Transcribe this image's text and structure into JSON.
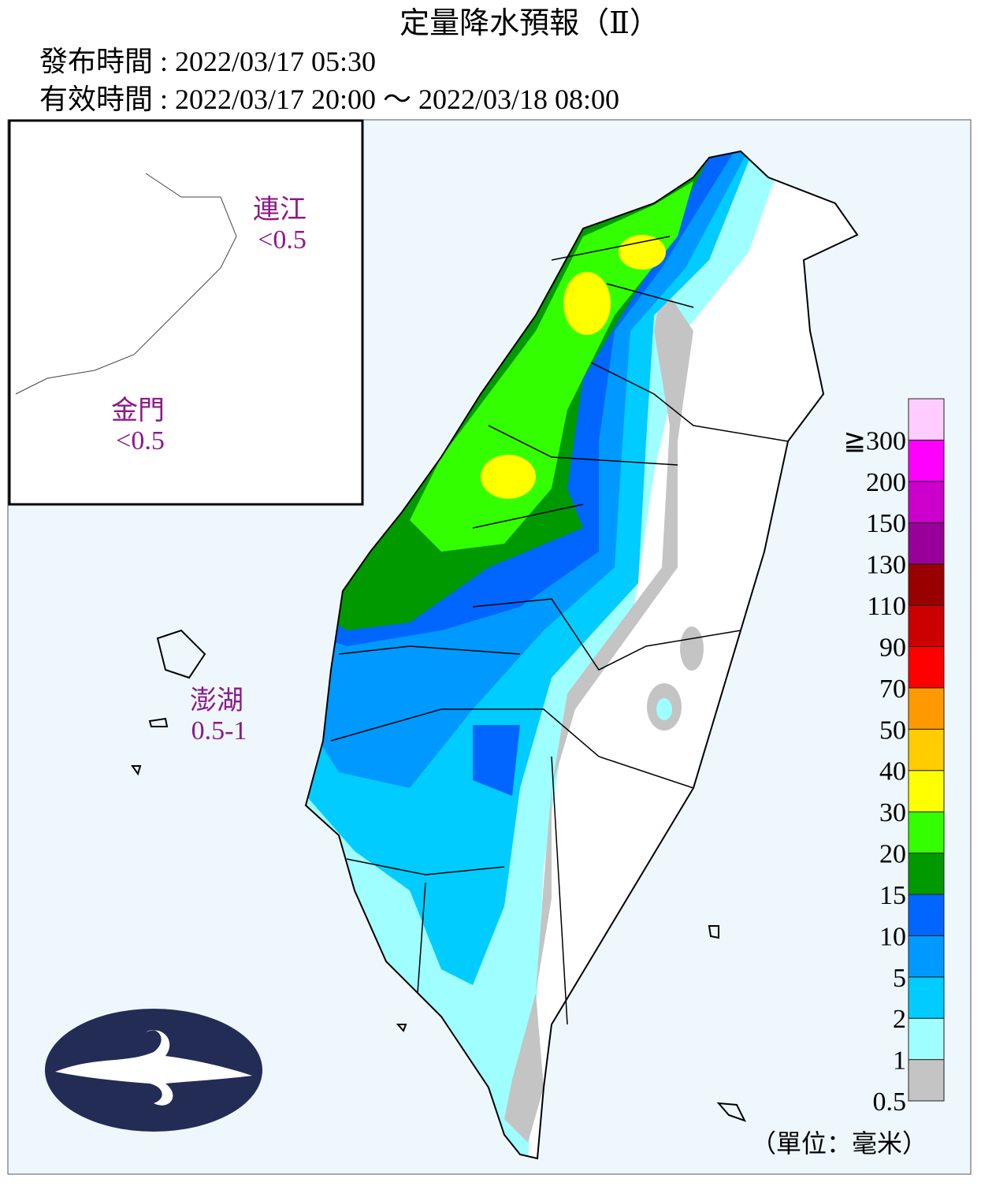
{
  "header": {
    "title": "定量降水預報（Ⅱ）",
    "issued": "發布時間 : 2022/03/17 05:30",
    "valid": "有效時間 : 2022/03/17 20:00 ～ 2022/03/18 08:00"
  },
  "map": {
    "labels": [
      {
        "name": "連江",
        "value": "<0.5"
      },
      {
        "name": "金門",
        "value": "<0.5"
      },
      {
        "name": "澎湖",
        "value": "0.5-1"
      }
    ]
  },
  "legend": {
    "unit": "（單位：毫米）",
    "levels": [
      {
        "label": "0.5",
        "color": "#c4c4c4"
      },
      {
        "label": "1",
        "color": "#9ffeff"
      },
      {
        "label": "2",
        "color": "#00ccff"
      },
      {
        "label": "5",
        "color": "#0099ff"
      },
      {
        "label": "10",
        "color": "#0066ff"
      },
      {
        "label": "15",
        "color": "#009900"
      },
      {
        "label": "20",
        "color": "#33ff00"
      },
      {
        "label": "30",
        "color": "#ffff00"
      },
      {
        "label": "40",
        "color": "#ffcc00"
      },
      {
        "label": "50",
        "color": "#ff9900"
      },
      {
        "label": "70",
        "color": "#ff0000"
      },
      {
        "label": "90",
        "color": "#cc0000"
      },
      {
        "label": "110",
        "color": "#990000"
      },
      {
        "label": "130",
        "color": "#990099"
      },
      {
        "label": "150",
        "color": "#cc00cc"
      },
      {
        "label": "200",
        "color": "#ff00ff"
      },
      {
        "label": "≧300",
        "color": "#ffccff"
      }
    ]
  }
}
